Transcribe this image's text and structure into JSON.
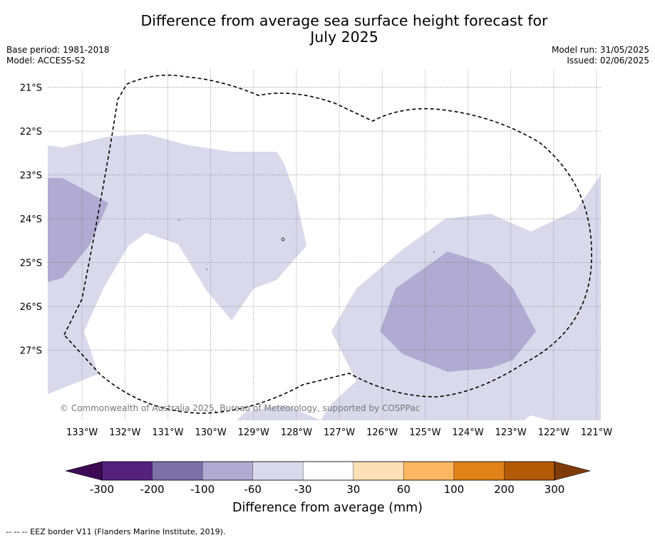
{
  "title_line1": "Difference from average sea surface height forecast for",
  "title_line2": "July 2025",
  "base_period": "Base period: 1981-2018",
  "model": "Model: ACCESS-S2",
  "model_run": "Model run: 31/05/2025",
  "issued": "Issued: 02/06/2025",
  "copyright": "© Commonwealth of Australia 2025, Bureau of Meteorology, supported by COSPPac",
  "colorbar": {
    "label": "Difference from average (mm)",
    "ticks": [
      "-300",
      "-200",
      "-100",
      "-60",
      "-30",
      "30",
      "60",
      "100",
      "200",
      "300"
    ],
    "colors": [
      "#3f0a54",
      "#55217f",
      "#7e71aa",
      "#b1aad2",
      "#d9d9eb",
      "#ffffff",
      "#fee0b6",
      "#fdb762",
      "#e08218",
      "#b35a07",
      "#7f3b08"
    ]
  },
  "map": {
    "lon_labels": [
      "133°W",
      "132°W",
      "131°W",
      "130°W",
      "129°W",
      "128°W",
      "127°W",
      "126°W",
      "125°W",
      "124°W",
      "123°W",
      "122°W",
      "121°W"
    ],
    "lat_labels": [
      "21°S",
      "22°S",
      "23°S",
      "24°S",
      "25°S",
      "26°S",
      "27°S"
    ],
    "lon_range": [
      -133.8,
      -120.9
    ],
    "lat_range": [
      -28.6,
      -20.6
    ]
  },
  "footnote": "--  --  -- EEZ border V11 (Flanders Marine Institute, 2019)."
}
